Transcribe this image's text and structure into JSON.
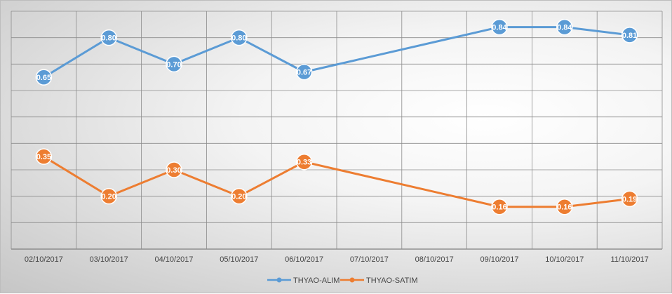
{
  "chart_data": {
    "type": "line",
    "categories": [
      "02/10/2017",
      "03/10/2017",
      "04/10/2017",
      "05/10/2017",
      "06/10/2017",
      "07/10/2017",
      "08/10/2017",
      "09/10/2017",
      "10/10/2017",
      "11/10/2017"
    ],
    "series": [
      {
        "name": "THYAO-ALIM",
        "color": "#5b9bd5",
        "values": [
          0.65,
          0.8,
          0.7,
          0.8,
          0.67,
          null,
          null,
          0.84,
          0.84,
          0.81
        ],
        "labels": [
          "0.65",
          "0.80",
          "0.70",
          "0.80",
          "0.67",
          null,
          null,
          "0.84",
          "0.84",
          "0.81"
        ]
      },
      {
        "name": "THYAO-SATIM",
        "color": "#ed7d31",
        "values": [
          0.35,
          0.2,
          0.3,
          0.2,
          0.33,
          null,
          null,
          0.16,
          0.16,
          0.19
        ],
        "labels": [
          "0.35",
          "0.20",
          "0.30",
          "0.20",
          "0.33",
          null,
          null,
          "0.16",
          "0.16",
          "0.19"
        ]
      }
    ],
    "ylim": [
      0,
      0.9
    ],
    "grid": true,
    "legend": "bottom"
  }
}
